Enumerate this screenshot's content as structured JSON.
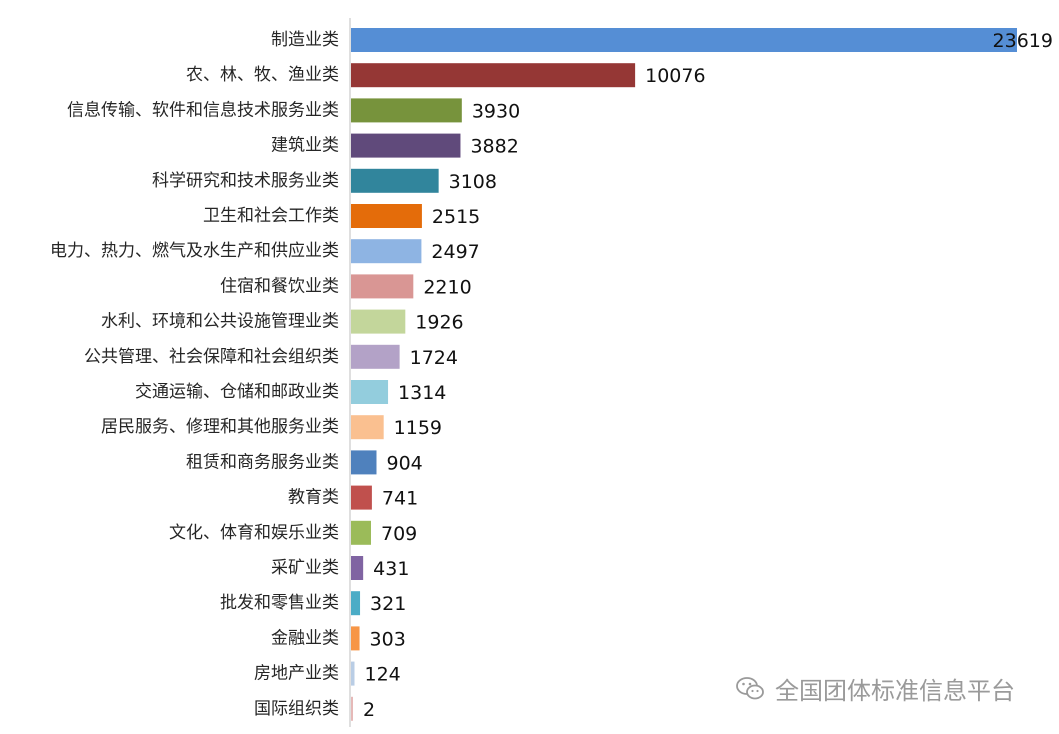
{
  "chart_data": {
    "type": "bar",
    "orientation": "horizontal",
    "categories": [
      "制造业类",
      "农、林、牧、渔业类",
      "信息传输、软件和信息技术服务业类",
      "建筑业类",
      "科学研究和技术服务业类",
      "卫生和社会工作类",
      "电力、热力、燃气及水生产和供应业类",
      "住宿和餐饮业类",
      "水利、环境和公共设施管理业类",
      "公共管理、社会保障和社会组织类",
      "交通运输、仓储和邮政业类",
      "居民服务、修理和其他服务业类",
      "租赁和商务服务业类",
      "教育类",
      "文化、体育和娱乐业类",
      "采矿业类",
      "批发和零售业类",
      "金融业类",
      "房地产业类",
      "国际组织类"
    ],
    "values": [
      23619,
      10076,
      3930,
      3882,
      3108,
      2515,
      2497,
      2210,
      1926,
      1724,
      1314,
      1159,
      904,
      741,
      709,
      431,
      321,
      303,
      124,
      2
    ],
    "colors": [
      "#558ED5",
      "#953735",
      "#77933C",
      "#604A7B",
      "#31859C",
      "#E46C0A",
      "#8EB4E3",
      "#D99694",
      "#C3D69B",
      "#B3A2C7",
      "#93CDDD",
      "#FAC090",
      "#4F81BD",
      "#C0504D",
      "#9BBB59",
      "#8064A2",
      "#4BACC6",
      "#F79646",
      "#B9CDE5",
      "#E6B9B8"
    ],
    "xlim": [
      0,
      23619
    ],
    "grid": false,
    "legend": "none",
    "data_labels": true,
    "title": "",
    "xlabel": "",
    "ylabel": ""
  },
  "watermark": {
    "text": "全国团体标准信息平台",
    "icon": "wechat-icon"
  }
}
